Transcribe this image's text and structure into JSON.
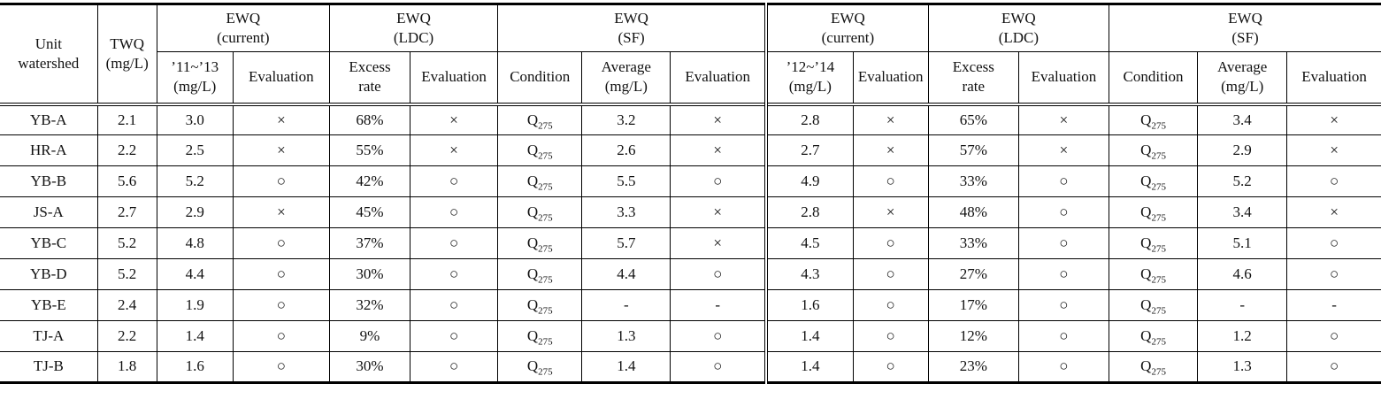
{
  "table": {
    "corner_headers": [
      {
        "label": "Unit\nwatershed"
      },
      {
        "label": "TWQ\n(mg/L)"
      }
    ],
    "groups": [
      {
        "label": "EWQ\n(current)"
      },
      {
        "label": "EWQ\n(LDC)"
      },
      {
        "label": "EWQ\n(SF)"
      },
      {
        "label": "EWQ\n(current)"
      },
      {
        "label": "EWQ\n(LDC)"
      },
      {
        "label": "EWQ\n(SF)"
      }
    ],
    "subheaders": [
      "’11~’13\n(mg/L)",
      "Evaluation",
      "Excess\nrate",
      "Evaluation",
      "Condition",
      "Average\n(mg/L)",
      "Evaluation",
      "’12~’14\n(mg/L)",
      "Evaluation",
      "Excess\nrate",
      "Evaluation",
      "Condition",
      "Average\n(mg/L)",
      "Evaluation"
    ],
    "marks": {
      "pass": "○",
      "fail": "×",
      "missing": "-"
    },
    "condition_flow": "Q275",
    "rows": [
      {
        "watershed": "YB-A",
        "cells": [
          "2.1",
          "3.0",
          "×",
          "68%",
          "×",
          "Q275",
          "3.2",
          "×",
          "2.8",
          "×",
          "65%",
          "×",
          "Q275",
          "3.4",
          "×"
        ]
      },
      {
        "watershed": "HR-A",
        "cells": [
          "2.2",
          "2.5",
          "×",
          "55%",
          "×",
          "Q275",
          "2.6",
          "×",
          "2.7",
          "×",
          "57%",
          "×",
          "Q275",
          "2.9",
          "×"
        ]
      },
      {
        "watershed": "YB-B",
        "cells": [
          "5.6",
          "5.2",
          "○",
          "42%",
          "○",
          "Q275",
          "5.5",
          "○",
          "4.9",
          "○",
          "33%",
          "○",
          "Q275",
          "5.2",
          "○"
        ]
      },
      {
        "watershed": "JS-A",
        "cells": [
          "2.7",
          "2.9",
          "×",
          "45%",
          "○",
          "Q275",
          "3.3",
          "×",
          "2.8",
          "×",
          "48%",
          "○",
          "Q275",
          "3.4",
          "×"
        ]
      },
      {
        "watershed": "YB-C",
        "cells": [
          "5.2",
          "4.8",
          "○",
          "37%",
          "○",
          "Q275",
          "5.7",
          "×",
          "4.5",
          "○",
          "33%",
          "○",
          "Q275",
          "5.1",
          "○"
        ]
      },
      {
        "watershed": "YB-D",
        "cells": [
          "5.2",
          "4.4",
          "○",
          "30%",
          "○",
          "Q275",
          "4.4",
          "○",
          "4.3",
          "○",
          "27%",
          "○",
          "Q275",
          "4.6",
          "○"
        ]
      },
      {
        "watershed": "YB-E",
        "cells": [
          "2.4",
          "1.9",
          "○",
          "32%",
          "○",
          "Q275",
          "-",
          "-",
          "1.6",
          "○",
          "17%",
          "○",
          "Q275",
          "-",
          "-"
        ]
      },
      {
        "watershed": "TJ-A",
        "cells": [
          "2.2",
          "1.4",
          "○",
          "9%",
          "○",
          "Q275",
          "1.3",
          "○",
          "1.4",
          "○",
          "12%",
          "○",
          "Q275",
          "1.2",
          "○"
        ]
      },
      {
        "watershed": "TJ-B",
        "cells": [
          "1.8",
          "1.6",
          "○",
          "30%",
          "○",
          "Q275",
          "1.4",
          "○",
          "1.4",
          "○",
          "23%",
          "○",
          "Q275",
          "1.3",
          "○"
        ]
      }
    ]
  }
}
